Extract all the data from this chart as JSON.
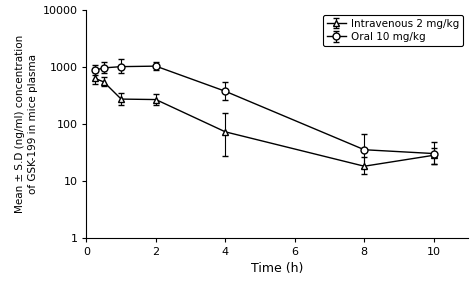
{
  "iv_x": [
    0.25,
    0.5,
    1.0,
    2.0,
    4.0,
    8.0,
    10.0
  ],
  "iv_y": [
    620,
    540,
    270,
    265,
    72,
    18,
    28
  ],
  "iv_yerr_upper": [
    180,
    130,
    70,
    70,
    80,
    8,
    10
  ],
  "iv_yerr_lower": [
    130,
    90,
    55,
    55,
    45,
    5,
    8
  ],
  "oral_x": [
    0.25,
    0.5,
    1.0,
    2.0,
    4.0,
    8.0,
    10.0
  ],
  "oral_y": [
    870,
    950,
    1000,
    1020,
    370,
    35,
    30
  ],
  "oral_yerr_upper": [
    180,
    280,
    380,
    180,
    160,
    30,
    18
  ],
  "oral_yerr_lower": [
    170,
    180,
    220,
    130,
    110,
    18,
    10
  ],
  "xlabel": "Time (h)",
  "ylabel": "Mean ± S.D (ng/ml) concentration\nof GSK-199 in mice plasma",
  "legend_iv": "Intravenous 2 mg/kg",
  "legend_oral": "Oral 10 mg/kg",
  "xlim": [
    0,
    11
  ],
  "xticks": [
    0,
    2,
    4,
    6,
    8,
    10
  ],
  "ylim_log": [
    1,
    10000
  ],
  "background_color": "#ffffff",
  "line_color": "#000000"
}
